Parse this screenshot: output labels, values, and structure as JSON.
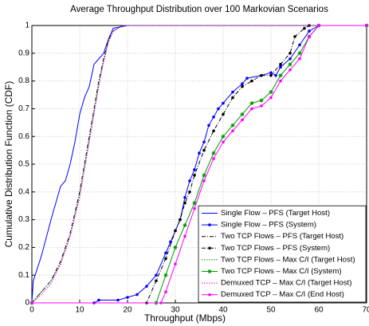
{
  "chart_data": {
    "type": "line",
    "title": "Average Throughput Distribution over 100 Markovian Scenarios",
    "xlabel": "Throughput (Mbps)",
    "ylabel": "Cumulative Distribution Function (CDF)",
    "xlim": [
      0,
      70
    ],
    "ylim": [
      0,
      1
    ],
    "xticks": [
      0,
      10,
      20,
      30,
      40,
      50,
      60,
      70
    ],
    "yticks": [
      0,
      0.1,
      0.2,
      0.3,
      0.4,
      0.5,
      0.6,
      0.7,
      0.8,
      0.9,
      1
    ],
    "grid": true,
    "legend": "lower right",
    "series": [
      {
        "name": "Single Flow – PFS (Target Host)",
        "color": "#0000ff",
        "line_style": "solid",
        "marker": "none",
        "x": [
          0,
          0.3,
          2,
          4,
          6,
          7,
          8,
          9,
          10,
          11,
          12,
          13,
          14,
          15,
          16,
          17,
          20,
          70
        ],
        "values": [
          0,
          0.08,
          0.17,
          0.3,
          0.42,
          0.44,
          0.5,
          0.58,
          0.68,
          0.74,
          0.78,
          0.86,
          0.88,
          0.9,
          0.95,
          0.99,
          1,
          1
        ]
      },
      {
        "name": "Single Flow – PFS (System)",
        "color": "#0000ff",
        "line_style": "solid",
        "marker": "dot",
        "x": [
          0,
          13,
          14,
          18,
          20,
          22,
          24,
          26,
          28,
          29,
          30,
          31,
          32,
          33,
          34,
          35,
          36,
          37,
          38,
          39,
          40,
          42,
          44,
          45,
          48,
          50,
          51,
          52,
          54,
          56,
          58,
          60,
          70
        ],
        "values": [
          0,
          0,
          0.01,
          0.01,
          0.02,
          0.03,
          0.06,
          0.1,
          0.18,
          0.22,
          0.26,
          0.3,
          0.38,
          0.44,
          0.48,
          0.54,
          0.58,
          0.64,
          0.67,
          0.7,
          0.72,
          0.76,
          0.79,
          0.81,
          0.82,
          0.83,
          0.82,
          0.85,
          0.88,
          0.93,
          0.98,
          1,
          1
        ]
      },
      {
        "name": "Two TCP Flows – PFS (Target Host)",
        "color": "#000000",
        "line_style": "dashdot",
        "marker": "none",
        "x": [
          0,
          2,
          4,
          6,
          8,
          10,
          11,
          12,
          13,
          14,
          15,
          16,
          17,
          19,
          70
        ],
        "values": [
          0,
          0.04,
          0.08,
          0.15,
          0.25,
          0.4,
          0.5,
          0.6,
          0.7,
          0.8,
          0.88,
          0.95,
          0.98,
          1,
          1
        ]
      },
      {
        "name": "Two TCP Flows – PFS (System)",
        "color": "#000000",
        "line_style": "dashdot",
        "marker": "dot",
        "x": [
          0,
          24,
          26,
          28,
          30,
          31,
          32,
          33,
          34,
          36,
          38,
          40,
          42,
          44,
          46,
          48,
          50,
          52,
          54,
          55,
          57,
          58,
          70
        ],
        "values": [
          0,
          0,
          0.08,
          0.16,
          0.26,
          0.3,
          0.36,
          0.4,
          0.46,
          0.55,
          0.62,
          0.68,
          0.74,
          0.78,
          0.8,
          0.82,
          0.82,
          0.86,
          0.9,
          0.96,
          0.99,
          1,
          1
        ]
      },
      {
        "name": "Two TCP Flows  – Max C/I (Target Host)",
        "color": "#009900",
        "line_style": "dotted",
        "marker": "none",
        "x": [
          0,
          2,
          4,
          6,
          8,
          10,
          11,
          12,
          13,
          14,
          15,
          16,
          17,
          19,
          70
        ],
        "values": [
          0,
          0.04,
          0.08,
          0.14,
          0.24,
          0.39,
          0.49,
          0.59,
          0.69,
          0.79,
          0.87,
          0.94,
          0.98,
          1,
          1
        ]
      },
      {
        "name": "Two TCP Flows  – Max C/I (System)",
        "color": "#009900",
        "line_style": "solid",
        "marker": "star",
        "x": [
          0,
          26,
          28,
          30,
          32,
          34,
          36,
          38,
          40,
          42,
          44,
          46,
          48,
          50,
          52,
          54,
          56,
          58,
          60,
          70
        ],
        "values": [
          0,
          0,
          0.1,
          0.2,
          0.28,
          0.36,
          0.46,
          0.54,
          0.6,
          0.64,
          0.68,
          0.72,
          0.73,
          0.76,
          0.82,
          0.86,
          0.9,
          0.96,
          1,
          1
        ]
      },
      {
        "name": "Demuxed TCP – Max C/I (Target Host)",
        "color": "#ff00ff",
        "line_style": "dotted",
        "marker": "none",
        "x": [
          0,
          2,
          4,
          6,
          8,
          10,
          11,
          12,
          13,
          14,
          15,
          16,
          17,
          19,
          70
        ],
        "values": [
          0,
          0.03,
          0.07,
          0.14,
          0.24,
          0.38,
          0.48,
          0.58,
          0.68,
          0.78,
          0.87,
          0.94,
          0.98,
          1,
          1
        ]
      },
      {
        "name": "Demuxed TCP – Max C/I (End Host)",
        "color": "#ff00ff",
        "line_style": "solid",
        "marker": "dot",
        "x": [
          0,
          27,
          28,
          30,
          32,
          34,
          36,
          38,
          40,
          42,
          44,
          46,
          48,
          50,
          52,
          54,
          56,
          58,
          60,
          70
        ],
        "values": [
          0,
          0,
          0.04,
          0.14,
          0.24,
          0.34,
          0.44,
          0.52,
          0.58,
          0.62,
          0.66,
          0.7,
          0.71,
          0.74,
          0.8,
          0.84,
          0.88,
          0.96,
          1,
          1
        ]
      }
    ]
  }
}
